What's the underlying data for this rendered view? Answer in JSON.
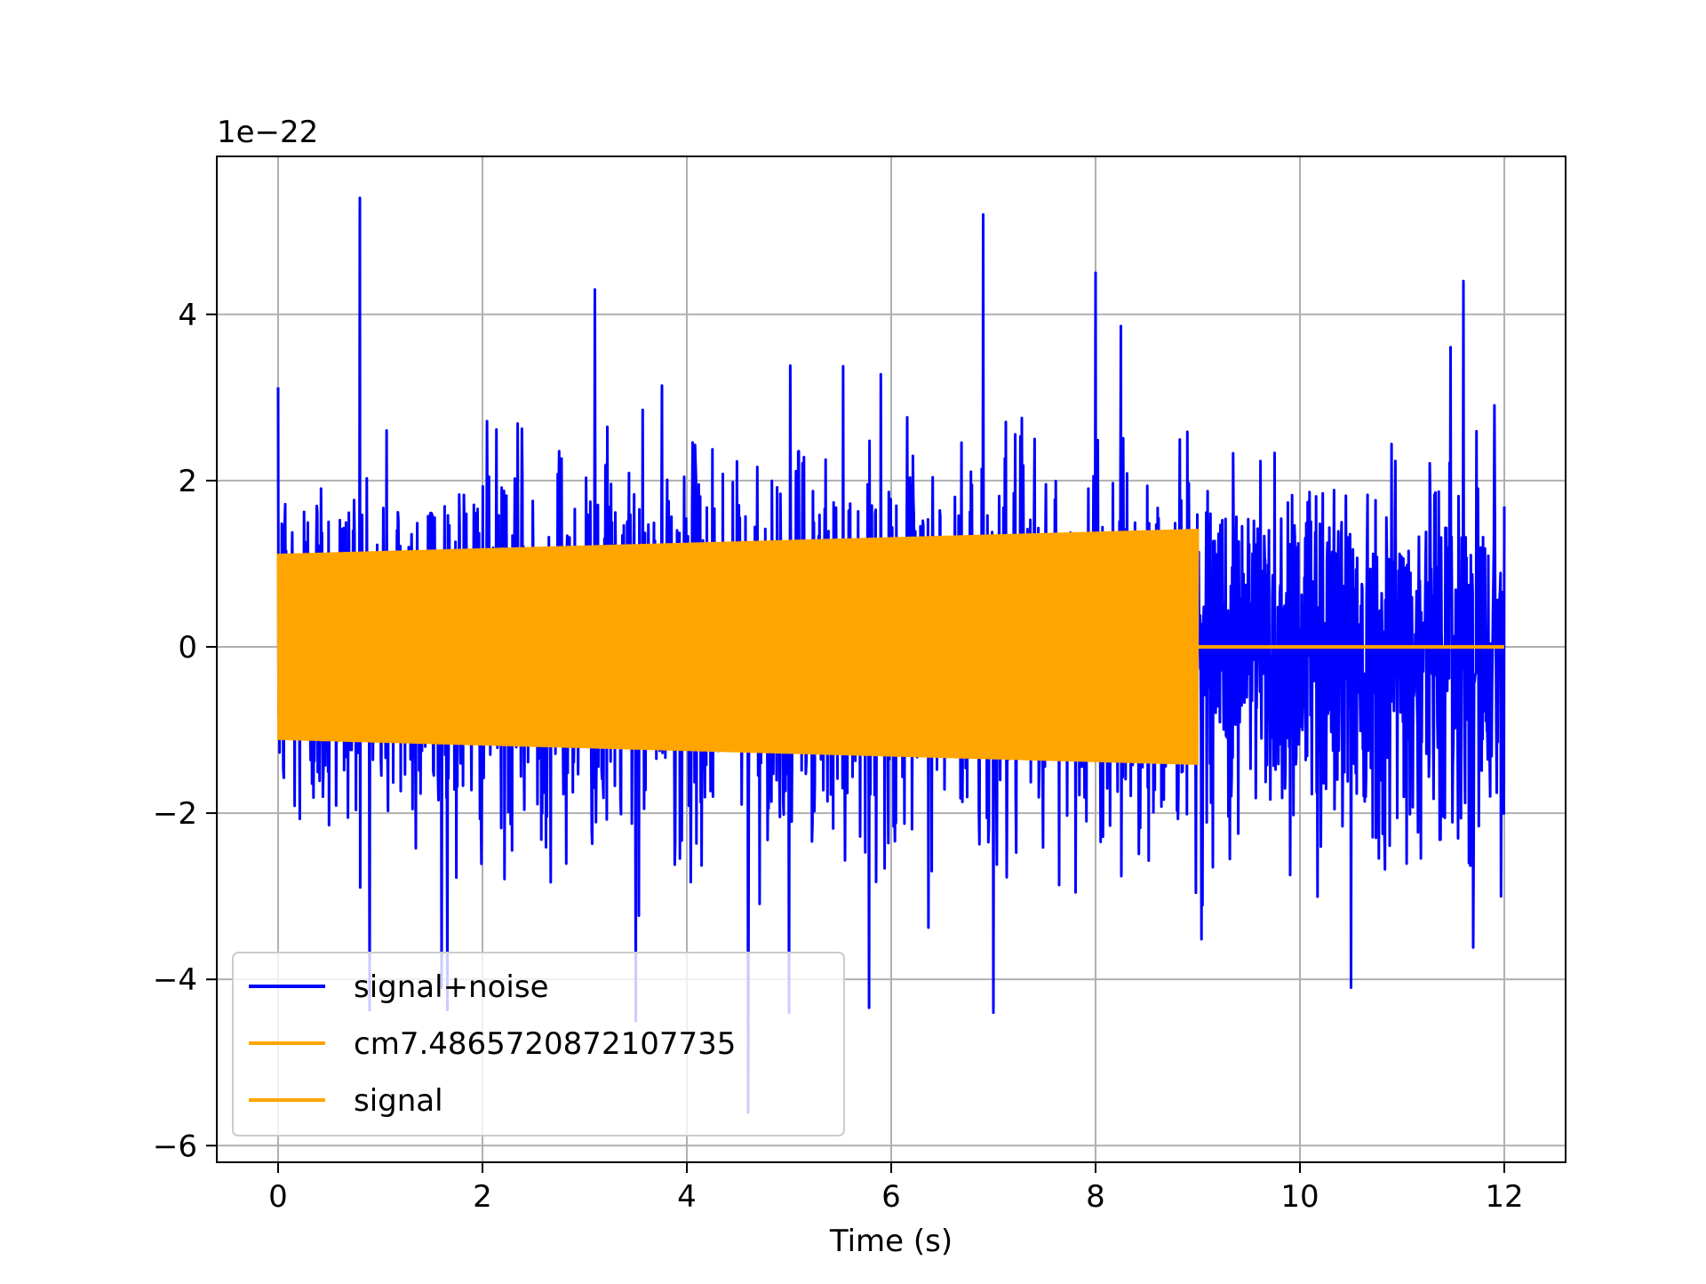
{
  "chart_data": {
    "type": "line",
    "title": "",
    "xlabel": "Time (s)",
    "ylabel": "",
    "offset_text": "1e−22",
    "xlim": [
      -0.6,
      12.6
    ],
    "ylim": [
      -6.2,
      5.9
    ],
    "xticks": [
      0,
      2,
      4,
      6,
      8,
      10,
      12
    ],
    "xtick_labels": [
      "0",
      "2",
      "4",
      "6",
      "8",
      "10",
      "12"
    ],
    "yticks": [
      -6,
      -4,
      -2,
      0,
      2,
      4
    ],
    "ytick_labels": [
      "−6",
      "−4",
      "−2",
      "0",
      "2",
      "4"
    ],
    "grid": true,
    "legend_position": "lower-left",
    "series": [
      {
        "name": "signal+noise",
        "color": "#0000ff",
        "x_range": [
          0,
          12
        ],
        "envelope": {
          "typical_abs": 2.5,
          "max": 5.4,
          "min": -5.6
        },
        "peaks": [
          {
            "x": 0.8,
            "y": 5.4
          },
          {
            "x": 6.9,
            "y": 5.2
          },
          {
            "x": 8.0,
            "y": 4.5
          },
          {
            "x": 11.6,
            "y": 4.4
          },
          {
            "x": 3.1,
            "y": 4.3
          },
          {
            "x": 4.6,
            "y": -5.6
          },
          {
            "x": 3.5,
            "y": -4.5
          },
          {
            "x": 5.0,
            "y": -4.4
          },
          {
            "x": 7.0,
            "y": -4.4
          },
          {
            "x": 1.6,
            "y": -4.1
          },
          {
            "x": 10.5,
            "y": -4.1
          }
        ]
      },
      {
        "name": "cm7.4865720872107735",
        "color": "#ffa500",
        "x_range": [
          0,
          9
        ],
        "amplitude_start": 1.12,
        "amplitude_end": 1.42,
        "after_end_value": 0
      },
      {
        "name": "signal",
        "color": "#ffa500",
        "x_range": [
          9,
          12
        ],
        "value": 0
      }
    ]
  }
}
